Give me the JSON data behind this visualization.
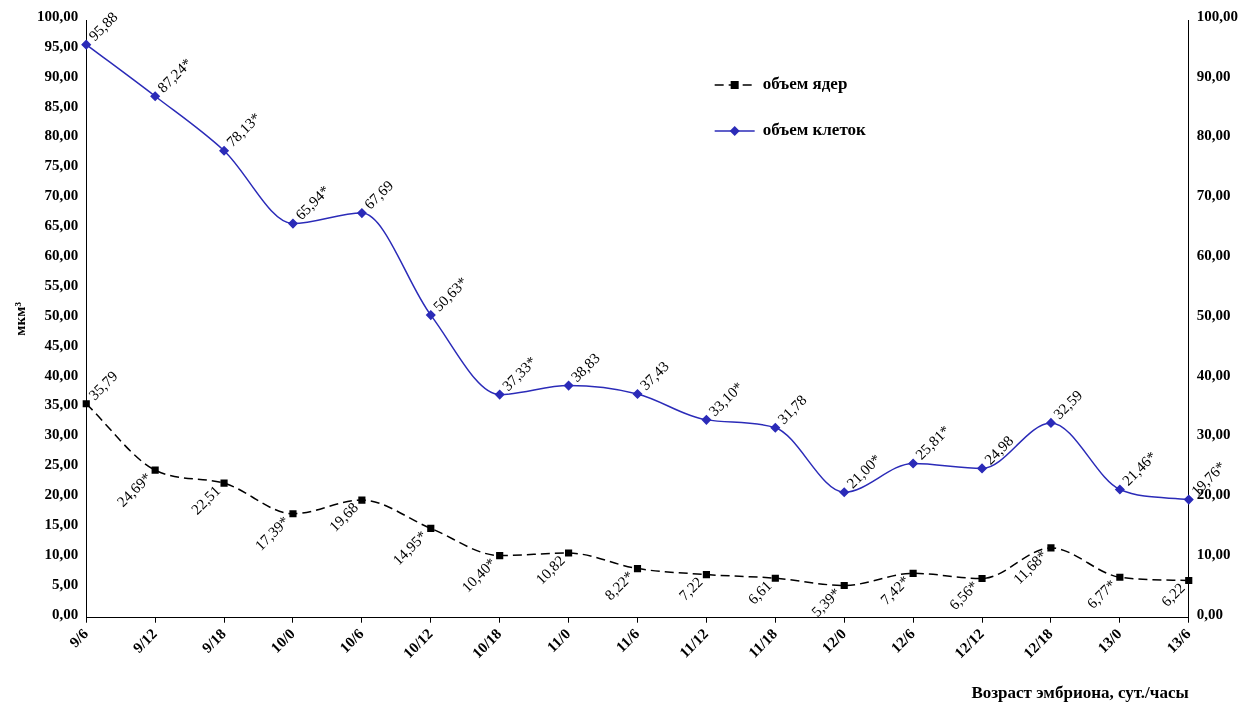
{
  "chart_data": {
    "type": "line",
    "xlabel": "Возраст эмбриона, сут./часы",
    "ylabel": "мкм³",
    "categories": [
      "9/6",
      "9/12",
      "9/18",
      "10/0",
      "10/6",
      "10/12",
      "10/18",
      "11/0",
      "11/6",
      "11/12",
      "11/18",
      "12/0",
      "12/6",
      "12/12",
      "12/18",
      "13/0",
      "13/6"
    ],
    "series": [
      {
        "name": "объем ядер",
        "color": "#000000",
        "marker": "square",
        "line_style": "dashed",
        "values": [
          35.79,
          24.69,
          22.51,
          17.39,
          19.68,
          14.95,
          10.4,
          10.82,
          8.22,
          7.22,
          6.61,
          5.39,
          7.42,
          6.56,
          11.68,
          6.77,
          6.22
        ],
        "value_labels": [
          "35,79",
          "24,69*",
          "22,51",
          "17,39*",
          "19,68",
          "14,95*",
          "10,40*",
          "10,82",
          "8,22*",
          "7,22",
          "6,61",
          "5,39*",
          "7,42*",
          "6,56*",
          "11,68*",
          "6,77*",
          "6,22"
        ]
      },
      {
        "name": "объем клеток",
        "color": "#2b2bb8",
        "marker": "diamond",
        "line_style": "solid",
        "values": [
          95.88,
          87.24,
          78.13,
          65.94,
          67.69,
          50.63,
          37.33,
          38.83,
          37.43,
          33.1,
          31.78,
          21.0,
          25.81,
          24.98,
          32.59,
          21.46,
          19.76
        ],
        "value_labels": [
          "95,88",
          "87,24*",
          "78,13*",
          "65,94*",
          "67,69",
          "50,63*",
          "37,33*",
          "38,83",
          "37,43",
          "33,10*",
          "31,78",
          "21,00*",
          "25,81*",
          "24,98",
          "32,59",
          "21,46*",
          "19,76*"
        ]
      }
    ],
    "ylim": [
      0,
      100
    ],
    "yticks": [
      {
        "value": 0,
        "label": "0,00"
      },
      {
        "value": 5,
        "label": "5,00"
      },
      {
        "value": 10,
        "label": "10,00"
      },
      {
        "value": 15,
        "label": "15,00"
      },
      {
        "value": 20,
        "label": "20,00"
      },
      {
        "value": 25,
        "label": "25,00"
      },
      {
        "value": 30,
        "label": "30,00"
      },
      {
        "value": 35,
        "label": "35,00"
      },
      {
        "value": 40,
        "label": "40,00"
      },
      {
        "value": 45,
        "label": "45,00"
      },
      {
        "value": 50,
        "label": "50,00"
      },
      {
        "value": 55,
        "label": "55,00"
      },
      {
        "value": 60,
        "label": "60,00"
      },
      {
        "value": 65,
        "label": "65,00"
      },
      {
        "value": 70,
        "label": "70,00"
      },
      {
        "value": 75,
        "label": "75,00"
      },
      {
        "value": 80,
        "label": "80,00"
      },
      {
        "value": 85,
        "label": "85,00"
      },
      {
        "value": 90,
        "label": "90,00"
      },
      {
        "value": 95,
        "label": "95,00"
      },
      {
        "value": 100,
        "label": "100,00"
      }
    ],
    "y2lim": [
      0,
      100
    ],
    "y2ticks": [
      {
        "value": 0,
        "label": "0,00"
      },
      {
        "value": 10,
        "label": "10,00"
      },
      {
        "value": 20,
        "label": "20,00"
      },
      {
        "value": 30,
        "label": "30,00"
      },
      {
        "value": 40,
        "label": "40,00"
      },
      {
        "value": 50,
        "label": "50,00"
      },
      {
        "value": 60,
        "label": "60,00"
      },
      {
        "value": 70,
        "label": "70,00"
      },
      {
        "value": 80,
        "label": "80,00"
      },
      {
        "value": 90,
        "label": "90,00"
      },
      {
        "value": 100,
        "label": "100,00"
      }
    ],
    "grid": false,
    "legend": "top right"
  }
}
